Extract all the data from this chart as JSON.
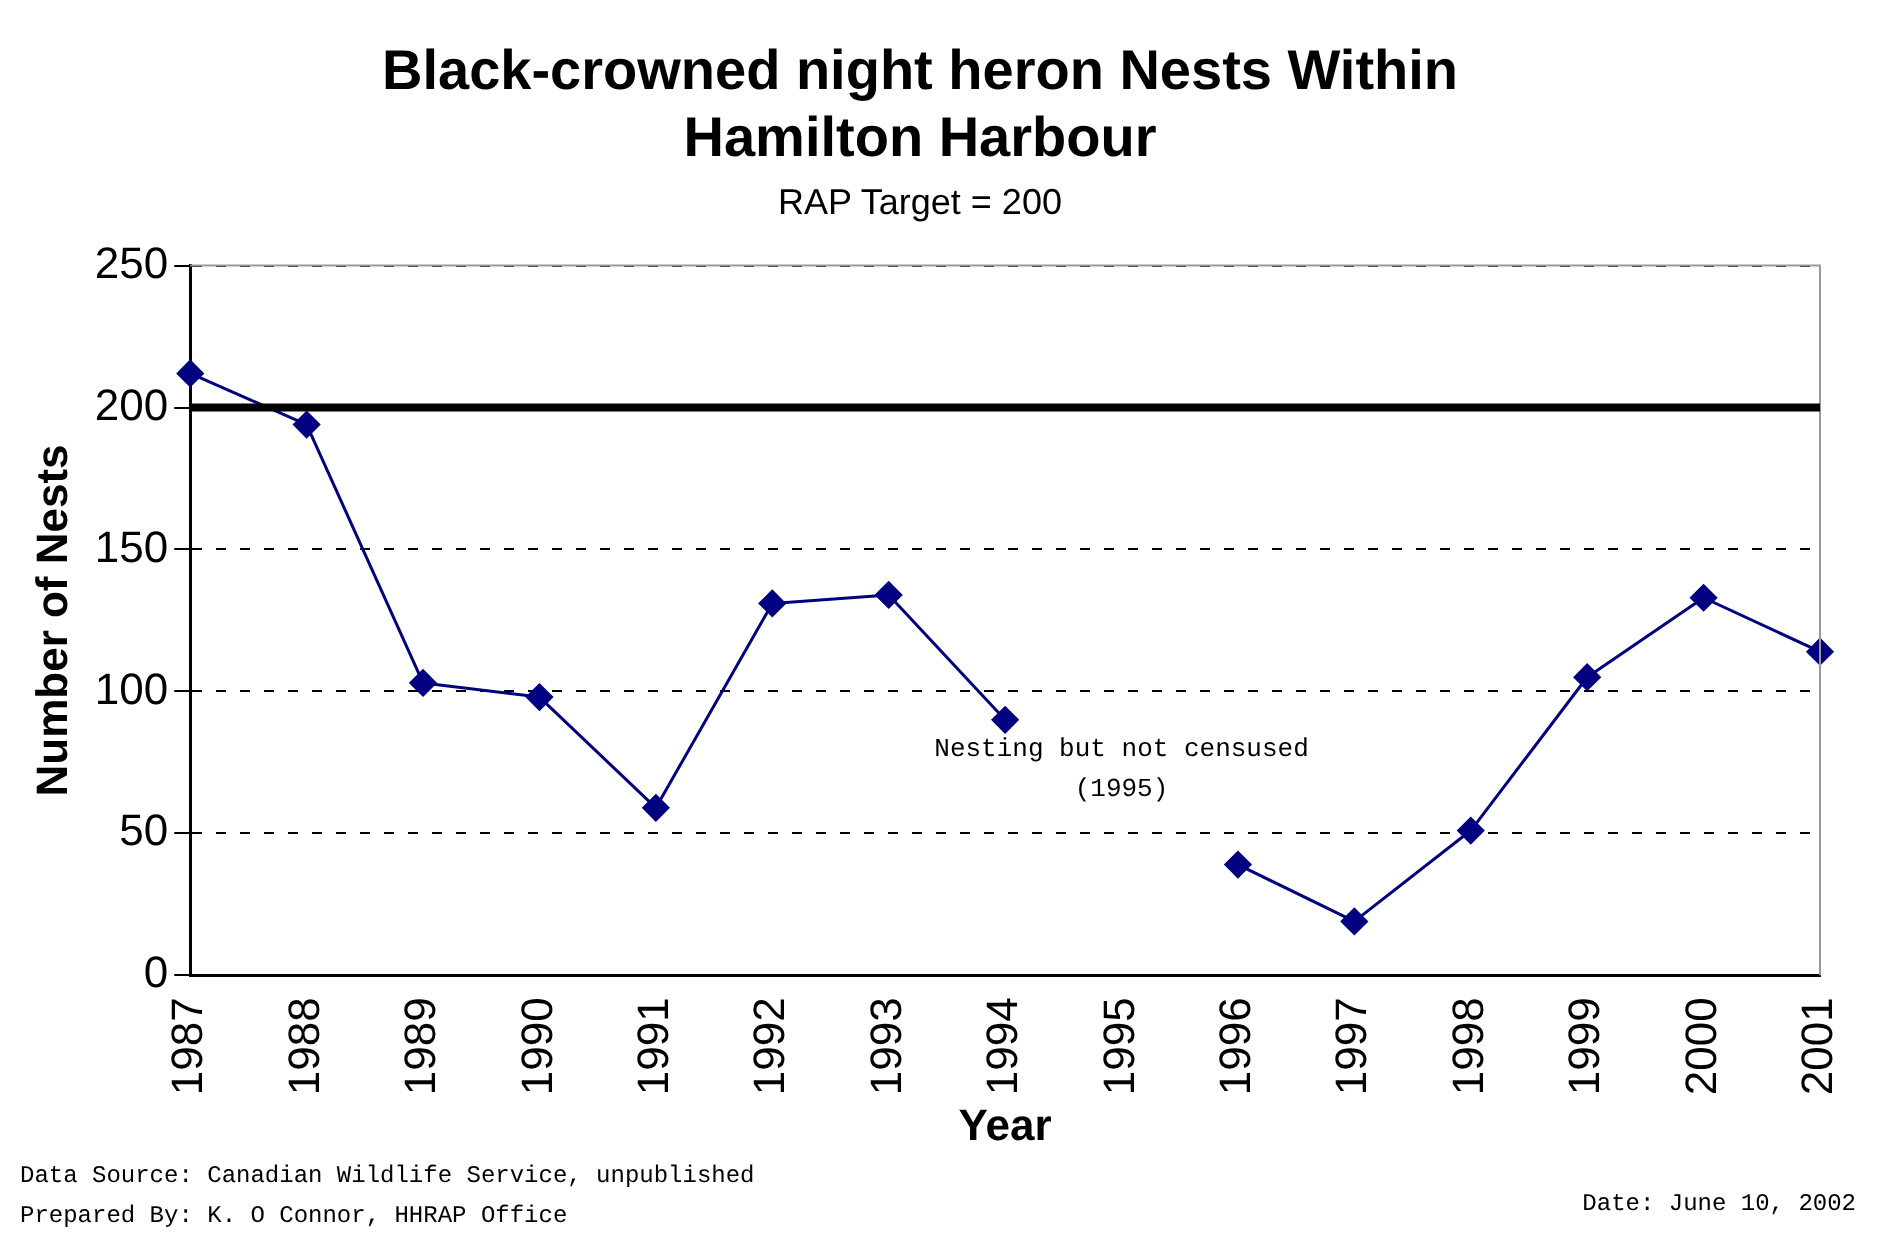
{
  "chart_data": {
    "type": "line",
    "title": "Black-crowned night heron Nests Within Hamilton Harbour",
    "subtitle": "RAP Target = 200",
    "xlabel": "Year",
    "ylabel": "Number of Nests",
    "categories": [
      "1987",
      "1988",
      "1989",
      "1990",
      "1991",
      "1992",
      "1993",
      "1994",
      "1995",
      "1996",
      "1997",
      "1998",
      "1999",
      "2000",
      "2001"
    ],
    "series": [
      {
        "color": "#000080",
        "values": [
          212,
          194,
          103,
          98,
          59,
          131,
          134,
          90,
          null,
          39,
          19,
          51,
          105,
          133,
          114
        ]
      }
    ],
    "ylim": [
      0,
      250
    ],
    "yticks": [
      0,
      50,
      100,
      150,
      200,
      250
    ],
    "grid": "y",
    "legend": false,
    "marker": "diamond",
    "line_style": "solid",
    "ref_lines": [
      {
        "axis": "y",
        "value": 200,
        "color": "#000000"
      }
    ],
    "annotations": [
      "Nesting but not censused\n(1995)",
      "Data Source: Canadian Wildlife Service, unpublished",
      "Prepared By: K. O Connor, HHRAP Office",
      "Date: June 10, 2002"
    ]
  }
}
